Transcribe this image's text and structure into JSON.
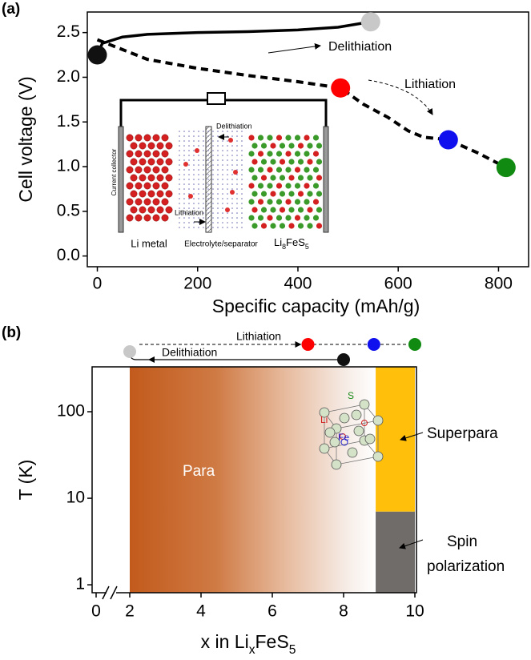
{
  "chart_data": [
    {
      "type": "line",
      "panel": "(a)",
      "xlabel": "Specific capacity (mAh/g)",
      "ylabel": "Cell voltage (V)",
      "xlim": [
        -20,
        860
      ],
      "ylim": [
        -0.12,
        2.73
      ],
      "xticks": [
        0,
        200,
        400,
        600,
        800
      ],
      "yticks": [
        {
          "value": 0,
          "label": "0.0"
        },
        0.5,
        {
          "value": 1,
          "label": "1.0"
        },
        1.5,
        {
          "value": 2,
          "label": "2.0"
        },
        2.5
      ],
      "series": [
        {
          "style": "solid",
          "color": "#000000",
          "x": [
            0,
            10,
            50,
            100,
            200,
            300,
            400,
            480,
            545
          ],
          "values": [
            2.25,
            2.38,
            2.45,
            2.48,
            2.5,
            2.51,
            2.53,
            2.56,
            2.62
          ]
        },
        {
          "style": "dashed",
          "color": "#000000",
          "x": [
            0,
            100,
            200,
            300,
            400,
            485,
            530,
            580,
            620,
            650,
            700,
            760,
            815
          ],
          "values": [
            2.42,
            2.2,
            2.1,
            2.02,
            1.95,
            1.88,
            1.7,
            1.55,
            1.4,
            1.33,
            1.3,
            1.15,
            0.99
          ]
        }
      ],
      "points": {
        "x": [
          0,
          545,
          485,
          700,
          815
        ],
        "values": [
          2.25,
          2.62,
          1.88,
          1.3,
          0.99
        ],
        "colors": [
          "#111111",
          "#c8c8c8",
          "#ff0000",
          "#1010ee",
          "#108a10"
        ]
      },
      "annotations": [
        "Delithiation",
        "Lithiation"
      ],
      "inset": {
        "left_label": "Li metal",
        "middle_label": "Electrolyte/separator",
        "right_label": [
          "Li",
          "8",
          "FeS",
          "5"
        ],
        "collector_label": "Current collector",
        "top_arrow": "Delithiation",
        "bottom_arrow": "Lithiation"
      }
    },
    {
      "type": "phase",
      "panel": "(b)",
      "xlabel": [
        "x in Li",
        "x",
        "FeS",
        "5"
      ],
      "ylabel": "T (K)",
      "xlim": [
        0,
        10
      ],
      "axis_break": [
        0,
        2
      ],
      "ylim": [
        0.81,
        330
      ],
      "log_y": true,
      "xticks": [
        0,
        2,
        4,
        6,
        8,
        10
      ],
      "yticks": [
        1,
        10,
        100
      ],
      "regions": [
        {
          "label": "Para",
          "x": [
            2,
            8.9
          ],
          "T": [
            0.81,
            330
          ],
          "colors": [
            "#c25a1c",
            "#ffffff"
          ]
        },
        {
          "label": "Superpara",
          "x": [
            8.9,
            10
          ],
          "T": [
            7,
            330
          ],
          "colors": [
            "#ffbf0a"
          ]
        },
        {
          "label": [
            "Spin",
            "polarization"
          ],
          "x": [
            8.9,
            10
          ],
          "T": [
            0.81,
            7
          ],
          "colors": [
            "#6f6c6a"
          ]
        }
      ],
      "points": {
        "x": [
          2,
          8,
          7,
          8.85,
          10
        ],
        "colors": [
          "#c8c8c8",
          "#111111",
          "#ff0000",
          "#1010ee",
          "#108a10"
        ]
      },
      "annotations": [
        "Lithiation",
        "Delithiation"
      ],
      "inset": {
        "labels": [
          "S",
          "Li",
          "Fe"
        ]
      }
    }
  ]
}
